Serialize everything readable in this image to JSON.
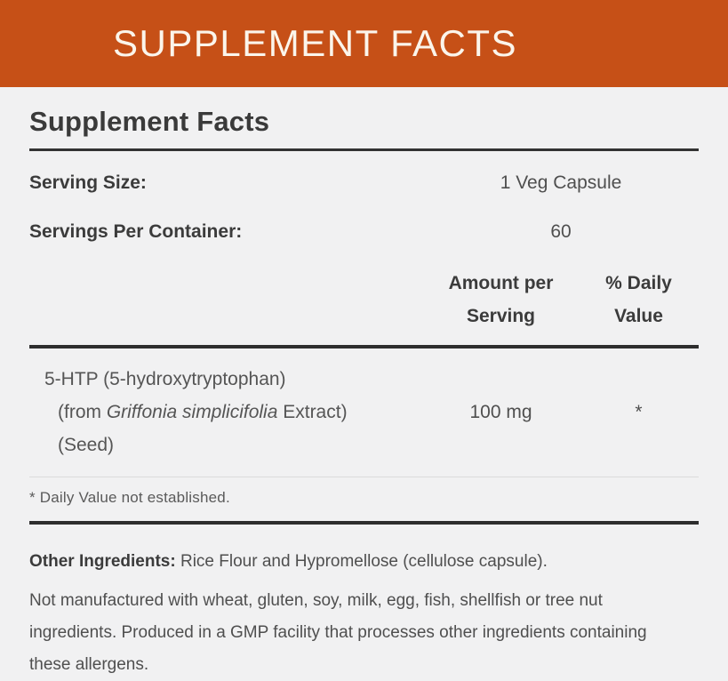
{
  "banner": {
    "title": "SUPPLEMENT FACTS",
    "bg_color": "#C65017",
    "text_color": "#FBF5EB"
  },
  "panel": {
    "title": "Supplement Facts",
    "serving_rows": [
      {
        "label": "Serving Size:",
        "value": "1 Veg Capsule"
      },
      {
        "label": "Servings Per Container:",
        "value": "60"
      }
    ],
    "columns": {
      "amount_header": "Amount per\nServing",
      "dv_header": "% Daily\nValue"
    },
    "ingredient": {
      "name_line1": "5-HTP (5-hydroxytryptophan)",
      "name_line2_prefix": "(from ",
      "name_line2_italic": "Griffonia simplicifolia",
      "name_line2_suffix": " Extract)",
      "name_line3": "(Seed)",
      "amount": "100 mg",
      "daily_value": "*"
    },
    "footnote": "* Daily Value not established."
  },
  "bottom": {
    "other_ingredients_label": "Other Ingredients:",
    "other_ingredients_text": " Rice Flour and Hypromellose (cellulose capsule).",
    "allergen_note": "Not manufactured with wheat, gluten, soy, milk, egg, fish, shellfish or tree nut ingredients. Produced in a GMP facility that processes other ingredients containing these allergens."
  }
}
